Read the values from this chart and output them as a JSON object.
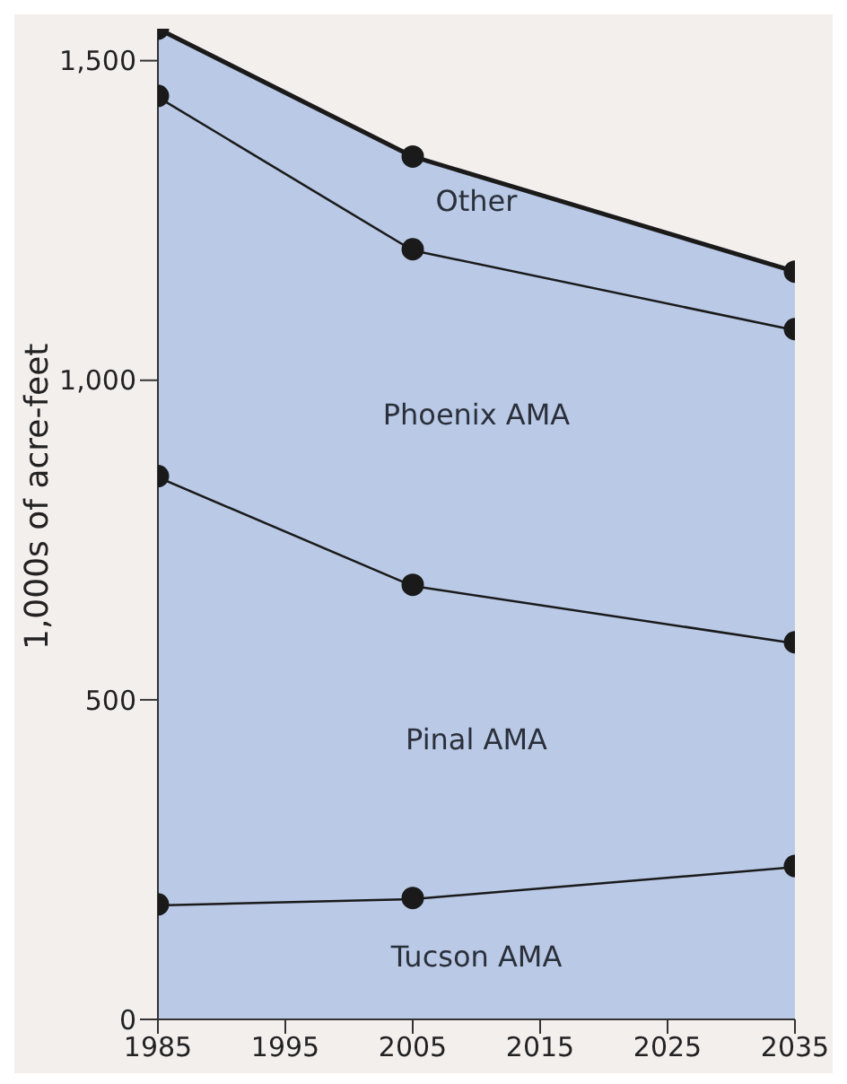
{
  "chart_data": {
    "type": "area",
    "stacked": true,
    "ylabel": "1,000s of acre-feet",
    "x": [
      1985,
      2005,
      2035
    ],
    "series": [
      {
        "name": "Tucson AMA",
        "color": "#b9c9e6",
        "values": [
          180,
          190,
          240
        ]
      },
      {
        "name": "Pinal AMA",
        "color": "#b9c9e6",
        "values": [
          670,
          490,
          350
        ]
      },
      {
        "name": "Phoenix AMA",
        "color": "#b9c9e6",
        "values": [
          595,
          525,
          490
        ]
      },
      {
        "name": "Other",
        "color": "#b9c9e6",
        "values": [
          105,
          145,
          90
        ]
      }
    ],
    "xlim": [
      1985,
      2035
    ],
    "xticks": [
      1985,
      1995,
      2005,
      2015,
      2025,
      2035
    ],
    "ylim": [
      0,
      1550
    ],
    "yticks": [
      0,
      {
        "value": 500,
        "label": "500"
      },
      {
        "value": 1000,
        "label": "1,000"
      },
      {
        "value": 1500,
        "label": "1,500"
      }
    ],
    "grid": false,
    "legend": false,
    "marker": "circle",
    "line_style": "solid"
  }
}
